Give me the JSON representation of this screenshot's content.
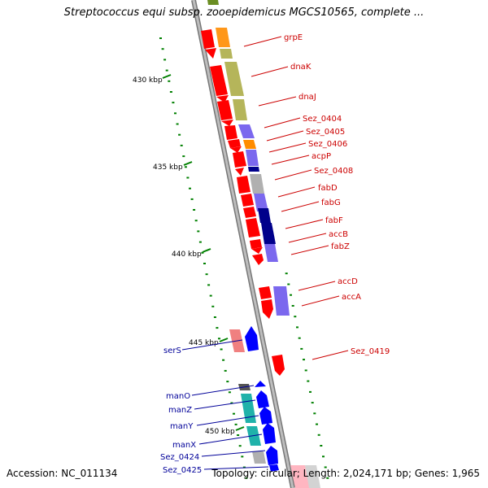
{
  "title": "Streptococcus equi subsp. zooepidemicus MGCS10565, complete ...",
  "footer": {
    "accession": "Accession: NC_011134",
    "summary": "Topology: circular; Length: 2,024,171 bp; Genes: 1,965"
  },
  "scale_ticks": [
    "430 kbp",
    "435 kbp",
    "440 kbp",
    "445 kbp",
    "450 kbp"
  ],
  "colors": {
    "forward_gene": "#ff0000",
    "reverse_gene": "#0000ff",
    "forward_label": "#cc0000",
    "reverse_label": "#000099",
    "tick": "#008000"
  },
  "genes_forward": [
    "grpE",
    "dnaK",
    "dnaJ",
    "Sez_0404",
    "Sez_0405",
    "Sez_0406",
    "acpP",
    "Sez_0408",
    "fabD",
    "fabG",
    "fabF",
    "accB",
    "fabZ",
    "accD",
    "accA",
    "Sez_0419"
  ],
  "genes_reverse": [
    "serS",
    "manO",
    "manZ",
    "manY",
    "manX",
    "Sez_0424",
    "Sez_0425"
  ]
}
